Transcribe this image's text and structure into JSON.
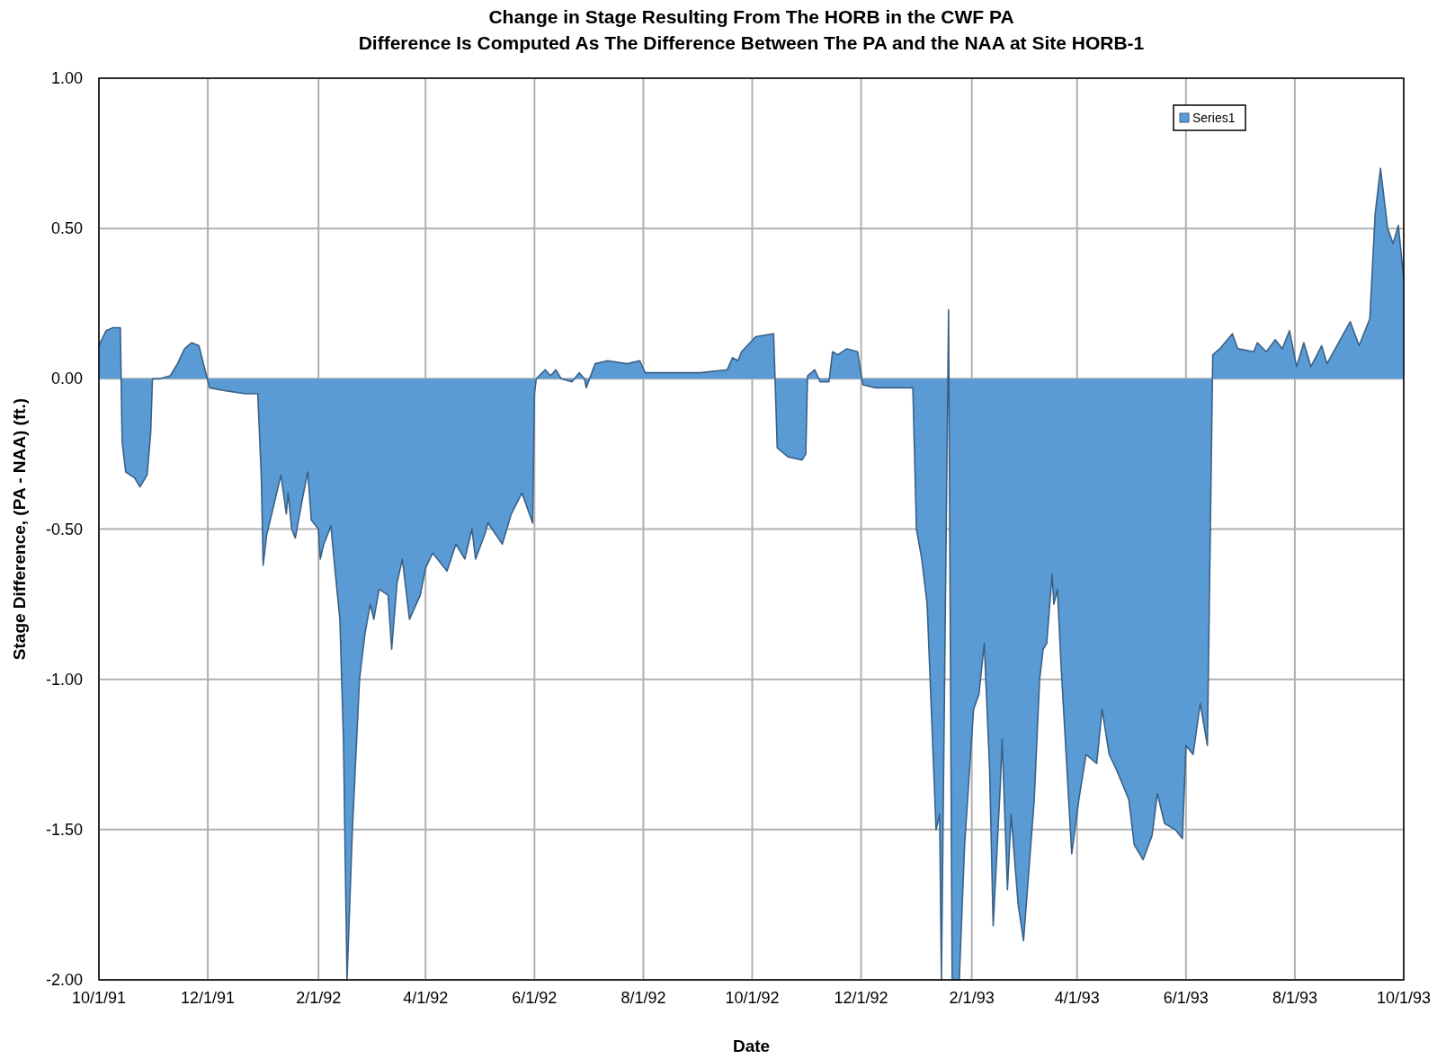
{
  "chart_data": {
    "type": "area",
    "title": "Change in Stage Resulting From The HORB in the CWF PA\nDifference Is Computed As The Difference Between The PA and the NAA at Site HORB-1",
    "xlabel": "Date",
    "ylabel": "Stage Difference, (PA - NAA) (ft.)",
    "x": [
      "1991-10-01",
      "1991-10-05",
      "1991-10-09",
      "1991-10-13",
      "1991-10-14",
      "1991-10-16",
      "1991-10-21",
      "1991-10-24",
      "1991-10-28",
      "1991-10-30",
      "1991-10-31",
      "1991-11-04",
      "1991-11-10",
      "1991-11-14",
      "1991-11-18",
      "1991-11-22",
      "1991-11-26",
      "1991-11-29",
      "1991-12-02",
      "1991-12-11",
      "1991-12-22",
      "1991-12-29",
      "1991-12-31",
      "1992-01-01",
      "1992-01-03",
      "1992-01-11",
      "1992-01-14",
      "1992-01-15",
      "1992-01-17",
      "1992-01-19",
      "1992-01-23",
      "1992-01-26",
      "1992-01-28",
      "1992-02-01",
      "1992-02-02",
      "1992-02-04",
      "1992-02-08",
      "1992-02-10",
      "1992-02-13",
      "1992-02-15",
      "1992-02-17",
      "1992-02-20",
      "1992-02-24",
      "1992-02-27",
      "1992-03-01",
      "1992-03-03",
      "1992-03-06",
      "1992-03-11",
      "1992-03-13",
      "1992-03-16",
      "1992-03-19",
      "1992-03-23",
      "1992-03-29",
      "1992-04-01",
      "1992-04-05",
      "1992-04-13",
      "1992-04-18",
      "1992-04-23",
      "1992-04-27",
      "1992-04-29",
      "1992-05-04",
      "1992-05-06",
      "1992-05-14",
      "1992-05-19",
      "1992-05-25",
      "1992-05-31",
      "1992-06-01",
      "1992-06-02",
      "1992-06-07",
      "1992-06-10",
      "1992-06-13",
      "1992-06-16",
      "1992-06-22",
      "1992-06-26",
      "1992-06-29",
      "1992-06-30",
      "1992-07-05",
      "1992-07-12",
      "1992-07-23",
      "1992-07-30",
      "1992-08-02",
      "1992-09-02",
      "1992-09-17",
      "1992-09-20",
      "1992-09-23",
      "1992-09-25",
      "1992-10-03",
      "1992-10-13",
      "1992-10-15",
      "1992-10-21",
      "1992-10-29",
      "1992-10-31",
      "1992-11-01",
      "1992-11-05",
      "1992-11-08",
      "1992-11-13",
      "1992-11-15",
      "1992-11-18",
      "1992-11-23",
      "1992-11-29",
      "1992-12-02",
      "1992-12-09",
      "1992-12-30",
      "1993-01-01",
      "1993-01-04",
      "1993-01-07",
      "1993-01-12",
      "1993-01-14",
      "1993-01-15",
      "1993-01-19",
      "1993-01-21",
      "1993-01-25",
      "1993-01-28",
      "1993-02-02",
      "1993-02-05",
      "1993-02-08",
      "1993-02-11",
      "1993-02-13",
      "1993-02-17",
      "1993-02-18",
      "1993-02-21",
      "1993-02-23",
      "1993-02-27",
      "1993-03-02",
      "1993-03-08",
      "1993-03-11",
      "1993-03-13",
      "1993-03-15",
      "1993-03-18",
      "1993-03-19",
      "1993-03-21",
      "1993-03-23",
      "1993-03-29",
      "1993-04-02",
      "1993-04-06",
      "1993-04-12",
      "1993-04-15",
      "1993-04-19",
      "1993-04-23",
      "1993-04-30",
      "1993-05-03",
      "1993-05-08",
      "1993-05-13",
      "1993-05-16",
      "1993-05-20",
      "1993-05-26",
      "1993-05-30",
      "1993-06-01",
      "1993-06-05",
      "1993-06-09",
      "1993-06-13",
      "1993-06-16",
      "1993-06-20",
      "1993-06-27",
      "1993-06-30",
      "1993-07-09",
      "1993-07-11",
      "1993-07-16",
      "1993-07-21",
      "1993-07-25",
      "1993-07-29",
      "1993-08-02",
      "1993-08-06",
      "1993-08-10",
      "1993-08-16",
      "1993-08-19",
      "1993-09-01",
      "1993-09-06",
      "1993-09-12",
      "1993-09-15",
      "1993-09-18",
      "1993-09-22",
      "1993-09-25",
      "1993-09-28",
      "1993-10-01"
    ],
    "series": [
      {
        "name": "Series1",
        "color": "#5b9bd5",
        "values": [
          0.11,
          0.16,
          0.17,
          0.17,
          -0.21,
          -0.31,
          -0.33,
          -0.36,
          -0.32,
          -0.18,
          0.0,
          0.0,
          0.01,
          0.05,
          0.1,
          0.12,
          0.11,
          0.04,
          -0.03,
          -0.04,
          -0.05,
          -0.05,
          -0.33,
          -0.62,
          -0.52,
          -0.32,
          -0.45,
          -0.38,
          -0.5,
          -0.53,
          -0.4,
          -0.31,
          -0.47,
          -0.5,
          -0.6,
          -0.55,
          -0.49,
          -0.62,
          -0.8,
          -1.2,
          -2.0,
          -1.5,
          -1.0,
          -0.85,
          -0.75,
          -0.8,
          -0.7,
          -0.72,
          -0.9,
          -0.68,
          -0.6,
          -0.8,
          -0.72,
          -0.63,
          -0.58,
          -0.64,
          -0.55,
          -0.6,
          -0.5,
          -0.6,
          -0.52,
          -0.48,
          -0.55,
          -0.45,
          -0.38,
          -0.48,
          -0.05,
          0.0,
          0.03,
          0.01,
          0.03,
          0.0,
          -0.01,
          0.02,
          0.0,
          -0.03,
          0.05,
          0.06,
          0.05,
          0.06,
          0.02,
          0.02,
          0.03,
          0.07,
          0.06,
          0.09,
          0.14,
          0.15,
          -0.23,
          -0.26,
          -0.27,
          -0.25,
          0.01,
          0.03,
          -0.01,
          -0.01,
          0.09,
          0.08,
          0.1,
          0.09,
          -0.02,
          -0.03,
          -0.03,
          -0.5,
          -0.6,
          -0.75,
          -1.5,
          -1.45,
          -2.0,
          0.23,
          -2.0,
          -2.0,
          -1.55,
          -1.1,
          -1.05,
          -0.88,
          -1.3,
          -1.82,
          -1.35,
          -1.2,
          -1.7,
          -1.45,
          -1.75,
          -1.87,
          -1.4,
          -1.0,
          -0.9,
          -0.88,
          -0.65,
          -0.75,
          -0.7,
          -0.95,
          -1.58,
          -1.4,
          -1.25,
          -1.28,
          -1.1,
          -1.25,
          -1.3,
          -1.4,
          -1.55,
          -1.6,
          -1.52,
          -1.38,
          -1.48,
          -1.5,
          -1.53,
          -1.22,
          -1.25,
          -1.08,
          -1.22,
          0.08,
          0.1,
          0.15,
          0.1,
          0.09,
          0.12,
          0.09,
          0.13,
          0.1,
          0.16,
          0.04,
          0.12,
          0.04,
          0.11,
          0.05,
          0.19,
          0.11,
          0.2,
          0.55,
          0.7,
          0.5,
          0.45,
          0.51,
          0.33
        ]
      }
    ],
    "xlim": [
      "1991-10-01",
      "1993-10-01"
    ],
    "xticks": [
      {
        "value": "1991-10-01",
        "label": "10/1/91"
      },
      {
        "value": "1991-12-01",
        "label": "12/1/91"
      },
      {
        "value": "1992-02-01",
        "label": "2/1/92"
      },
      {
        "value": "1992-04-01",
        "label": "4/1/92"
      },
      {
        "value": "1992-06-01",
        "label": "6/1/92"
      },
      {
        "value": "1992-08-01",
        "label": "8/1/92"
      },
      {
        "value": "1992-10-01",
        "label": "10/1/92"
      },
      {
        "value": "1992-12-01",
        "label": "12/1/92"
      },
      {
        "value": "1993-02-01",
        "label": "2/1/93"
      },
      {
        "value": "1993-04-01",
        "label": "4/1/93"
      },
      {
        "value": "1993-06-01",
        "label": "6/1/93"
      },
      {
        "value": "1993-08-01",
        "label": "8/1/93"
      },
      {
        "value": "1993-10-01",
        "label": "10/1/93"
      }
    ],
    "ylim": [
      -2,
      1
    ],
    "yticks": [
      {
        "value": -2,
        "label": "-2.00"
      },
      {
        "value": -1.5,
        "label": "-1.50"
      },
      {
        "value": -1,
        "label": "-1.00"
      },
      {
        "value": -0.5,
        "label": "-0.50"
      },
      {
        "value": 0,
        "label": "0.00"
      },
      {
        "value": 0.5,
        "label": "0.50"
      },
      {
        "value": 1,
        "label": "1.00"
      }
    ],
    "grid": true,
    "legend": "top right"
  }
}
